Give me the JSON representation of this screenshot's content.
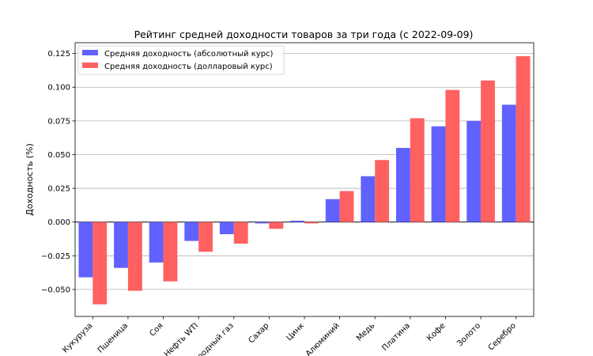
{
  "chart_data": {
    "type": "bar",
    "title": "Рейтинг средней доходности товаров за три года (с 2022-09-09)",
    "xlabel": "",
    "ylabel": "Доходность (%)",
    "ylim": [
      -0.07,
      0.133
    ],
    "yticks": [
      -0.05,
      -0.025,
      0.0,
      0.025,
      0.05,
      0.075,
      0.1,
      0.125
    ],
    "ytick_labels": [
      "−0.050",
      "−0.025",
      "0.000",
      "0.025",
      "0.050",
      "0.075",
      "0.100",
      "0.125"
    ],
    "grid": "y",
    "legend_position": "top-left",
    "categories": [
      "Кукуруза",
      "Пшеница",
      "Соя",
      "Нефть WTI",
      "Природный газ",
      "Сахар",
      "Цинк",
      "Алюминий",
      "Медь",
      "Платина",
      "Кофе",
      "Золото",
      "Серебро"
    ],
    "series": [
      {
        "name": "Средняя доходность (абсолютный курс)",
        "color": "#6161ff",
        "values": [
          -0.041,
          -0.034,
          -0.03,
          -0.014,
          -0.009,
          -0.001,
          0.001,
          0.017,
          0.034,
          0.055,
          0.071,
          0.075,
          0.087
        ]
      },
      {
        "name": "Средняя доходность (долларовый курс)",
        "color": "#ff6161",
        "values": [
          -0.061,
          -0.051,
          -0.044,
          -0.022,
          -0.016,
          -0.005,
          -0.001,
          0.023,
          0.046,
          0.077,
          0.098,
          0.105,
          0.123
        ]
      }
    ]
  }
}
